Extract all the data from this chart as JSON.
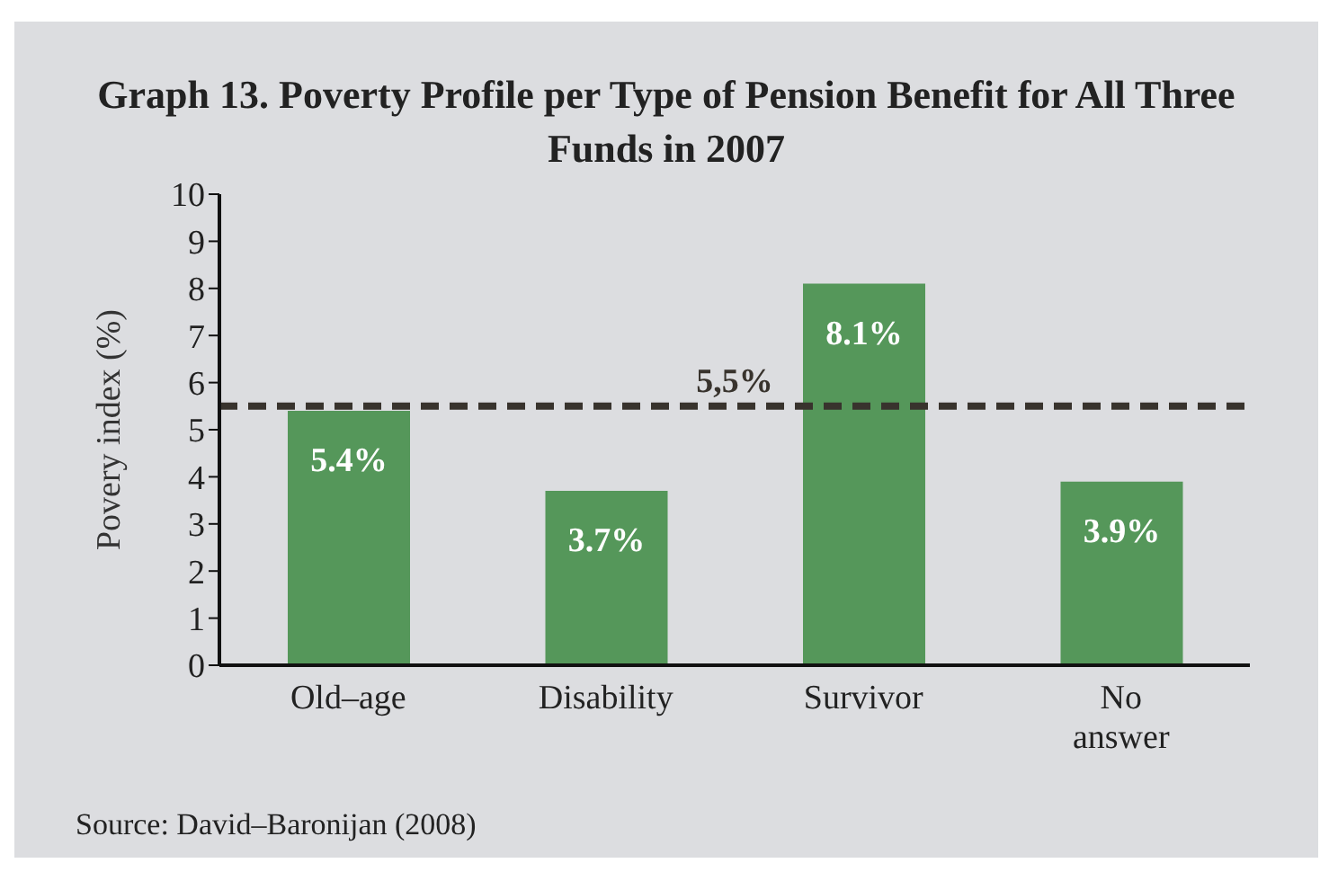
{
  "chart_data": {
    "type": "bar",
    "title": "Graph 13. Poverty Profile per Type of Pension Benefit for All Three Funds in 2007",
    "ylabel": "Povery index (%)",
    "categories": [
      "Old–age",
      "Disability",
      "Survivor",
      "No answer"
    ],
    "values": [
      5.4,
      3.7,
      8.1,
      3.9
    ],
    "value_labels": [
      "5.4%",
      "3.7%",
      "8.1%",
      "3.9%"
    ],
    "color": "#55975a",
    "ylim": [
      0,
      10
    ],
    "yticks": [
      0,
      1,
      2,
      3,
      4,
      5,
      6,
      7,
      8,
      9,
      10
    ],
    "ref_lines": [
      {
        "axis": "y",
        "value": 5.5,
        "label": "5,5%",
        "color": "#38332d",
        "line_style": "dashed"
      }
    ],
    "annotations": [
      "Source: David–Baronijan (2008)"
    ],
    "grid": false,
    "legend": false
  }
}
